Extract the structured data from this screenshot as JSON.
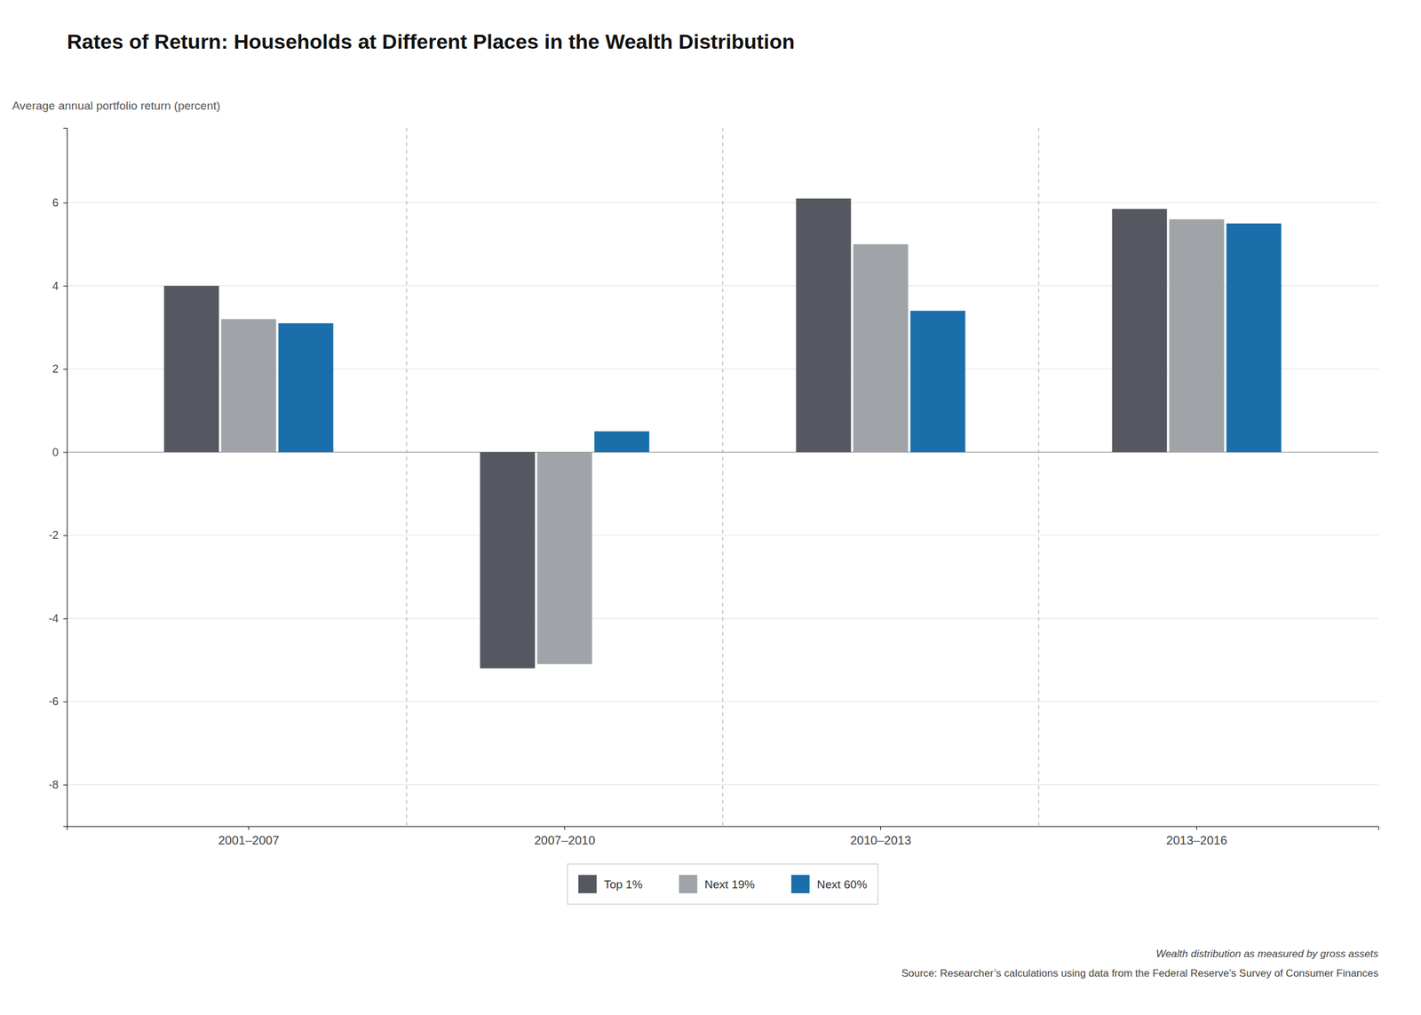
{
  "chart_data": {
    "type": "bar",
    "title": "Rates of Return: Households at Different Places in the Wealth Distribution",
    "ylabel": "Average annual portfolio return (percent)",
    "categories": [
      "2001–2007",
      "2007–2010",
      "2010–2013",
      "2013–2016"
    ],
    "series": [
      {
        "name": "Top 1%",
        "color": "#555860",
        "values": [
          4.0,
          -5.2,
          6.1,
          5.85
        ]
      },
      {
        "name": "Next 19%",
        "color": "#a0a4a8",
        "values": [
          3.2,
          -5.1,
          5.0,
          5.6
        ]
      },
      {
        "name": "Next 60%",
        "color": "#1a6faa",
        "values": [
          3.1,
          0.5,
          3.4,
          5.5
        ]
      }
    ],
    "ylim": [
      -9.0,
      7.8
    ],
    "yticks": [
      -8,
      -6,
      -4,
      -2,
      0,
      2,
      4,
      6
    ],
    "grid": true,
    "legend": "bottom",
    "annotations": [
      "Wealth distribution as measured by gross assets",
      "Source: Researcher’s calculations using data from the Federal Reserve’s Survey of Consumer Finances"
    ]
  }
}
